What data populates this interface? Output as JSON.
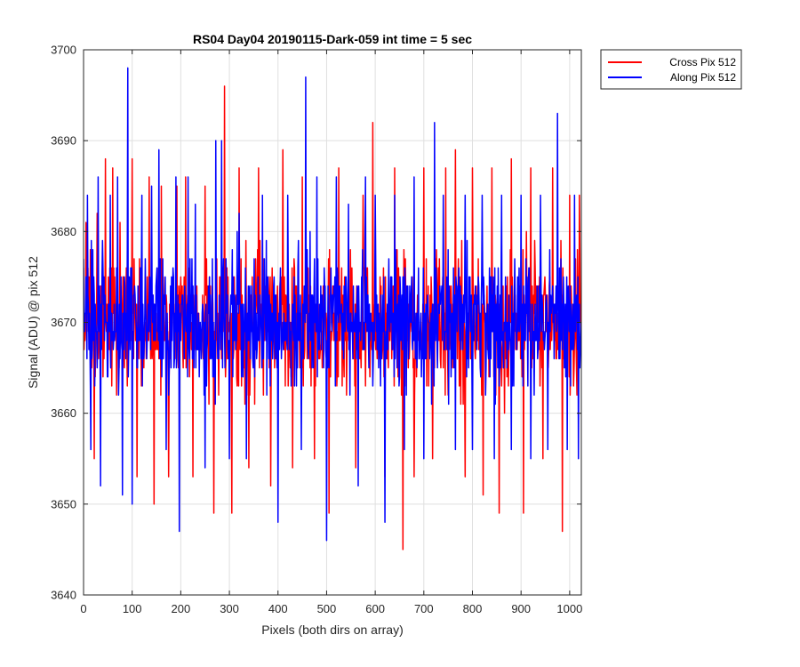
{
  "chart_data": {
    "type": "line",
    "title": "RS04 Day04 20190115-Dark-059 int time = 5 sec",
    "xlabel": "Pixels (both dirs on array)",
    "ylabel": "Signal (ADU) @ pix 512",
    "xlim": [
      0,
      1024
    ],
    "ylim": [
      3640,
      3700
    ],
    "xticks": [
      0,
      100,
      200,
      300,
      400,
      500,
      600,
      700,
      800,
      900,
      1000
    ],
    "yticks": [
      3640,
      3650,
      3660,
      3670,
      3680,
      3690,
      3700
    ],
    "grid": true,
    "legend_position": "outside-top-right",
    "colors": {
      "cross": "#ff0000",
      "along": "#0000ff"
    },
    "series": [
      {
        "name": "Cross Pix 512",
        "color": "#ff0000",
        "x_start": 0,
        "x_step": 1,
        "baseline": 3670,
        "spikes": [
          [
            5,
            3681
          ],
          [
            22,
            3655
          ],
          [
            28,
            3682
          ],
          [
            45,
            3688
          ],
          [
            60,
            3687
          ],
          [
            75,
            3681
          ],
          [
            100,
            3688
          ],
          [
            110,
            3653
          ],
          [
            135,
            3686
          ],
          [
            145,
            3650
          ],
          [
            160,
            3685
          ],
          [
            175,
            3653
          ],
          [
            192,
            3685
          ],
          [
            210,
            3686
          ],
          [
            225,
            3653
          ],
          [
            250,
            3685
          ],
          [
            268,
            3649
          ],
          [
            290,
            3696
          ],
          [
            305,
            3649
          ],
          [
            320,
            3687
          ],
          [
            340,
            3654
          ],
          [
            360,
            3687
          ],
          [
            385,
            3652
          ],
          [
            410,
            3689
          ],
          [
            430,
            3654
          ],
          [
            450,
            3686
          ],
          [
            475,
            3655
          ],
          [
            505,
            3649
          ],
          [
            525,
            3687
          ],
          [
            560,
            3654
          ],
          [
            575,
            3684
          ],
          [
            595,
            3692
          ],
          [
            620,
            3653
          ],
          [
            640,
            3687
          ],
          [
            657,
            3645
          ],
          [
            680,
            3653
          ],
          [
            700,
            3687
          ],
          [
            718,
            3655
          ],
          [
            745,
            3687
          ],
          [
            765,
            3689
          ],
          [
            785,
            3653
          ],
          [
            800,
            3687
          ],
          [
            822,
            3651
          ],
          [
            840,
            3687
          ],
          [
            855,
            3649
          ],
          [
            880,
            3688
          ],
          [
            905,
            3649
          ],
          [
            920,
            3687
          ],
          [
            945,
            3655
          ],
          [
            965,
            3687
          ],
          [
            985,
            3647
          ],
          [
            1000,
            3684
          ],
          [
            1015,
            3662
          ],
          [
            1020,
            3684
          ]
        ]
      },
      {
        "name": "Along Pix 512",
        "color": "#0000ff",
        "x_start": 0,
        "x_step": 1,
        "baseline": 3670,
        "spikes": [
          [
            8,
            3684
          ],
          [
            15,
            3656
          ],
          [
            30,
            3686
          ],
          [
            35,
            3652
          ],
          [
            55,
            3684
          ],
          [
            70,
            3686
          ],
          [
            80,
            3651
          ],
          [
            91,
            3698
          ],
          [
            100,
            3650
          ],
          [
            120,
            3684
          ],
          [
            140,
            3685
          ],
          [
            155,
            3689
          ],
          [
            170,
            3656
          ],
          [
            190,
            3686
          ],
          [
            197,
            3647
          ],
          [
            215,
            3686
          ],
          [
            230,
            3683
          ],
          [
            250,
            3654
          ],
          [
            272,
            3690
          ],
          [
            284,
            3690
          ],
          [
            300,
            3655
          ],
          [
            320,
            3682
          ],
          [
            335,
            3655
          ],
          [
            368,
            3684
          ],
          [
            400,
            3648
          ],
          [
            420,
            3684
          ],
          [
            448,
            3656
          ],
          [
            457,
            3697
          ],
          [
            480,
            3686
          ],
          [
            500,
            3646
          ],
          [
            520,
            3686
          ],
          [
            545,
            3683
          ],
          [
            565,
            3652
          ],
          [
            580,
            3686
          ],
          [
            600,
            3684
          ],
          [
            620,
            3648
          ],
          [
            640,
            3684
          ],
          [
            660,
            3656
          ],
          [
            680,
            3686
          ],
          [
            700,
            3655
          ],
          [
            722,
            3692
          ],
          [
            740,
            3684
          ],
          [
            765,
            3656
          ],
          [
            785,
            3684
          ],
          [
            800,
            3656
          ],
          [
            820,
            3684
          ],
          [
            845,
            3655
          ],
          [
            860,
            3684
          ],
          [
            880,
            3656
          ],
          [
            900,
            3684
          ],
          [
            920,
            3655
          ],
          [
            940,
            3684
          ],
          [
            955,
            3656
          ],
          [
            975,
            3693
          ],
          [
            995,
            3656
          ],
          [
            1010,
            3684
          ],
          [
            1018,
            3655
          ]
        ]
      }
    ]
  }
}
